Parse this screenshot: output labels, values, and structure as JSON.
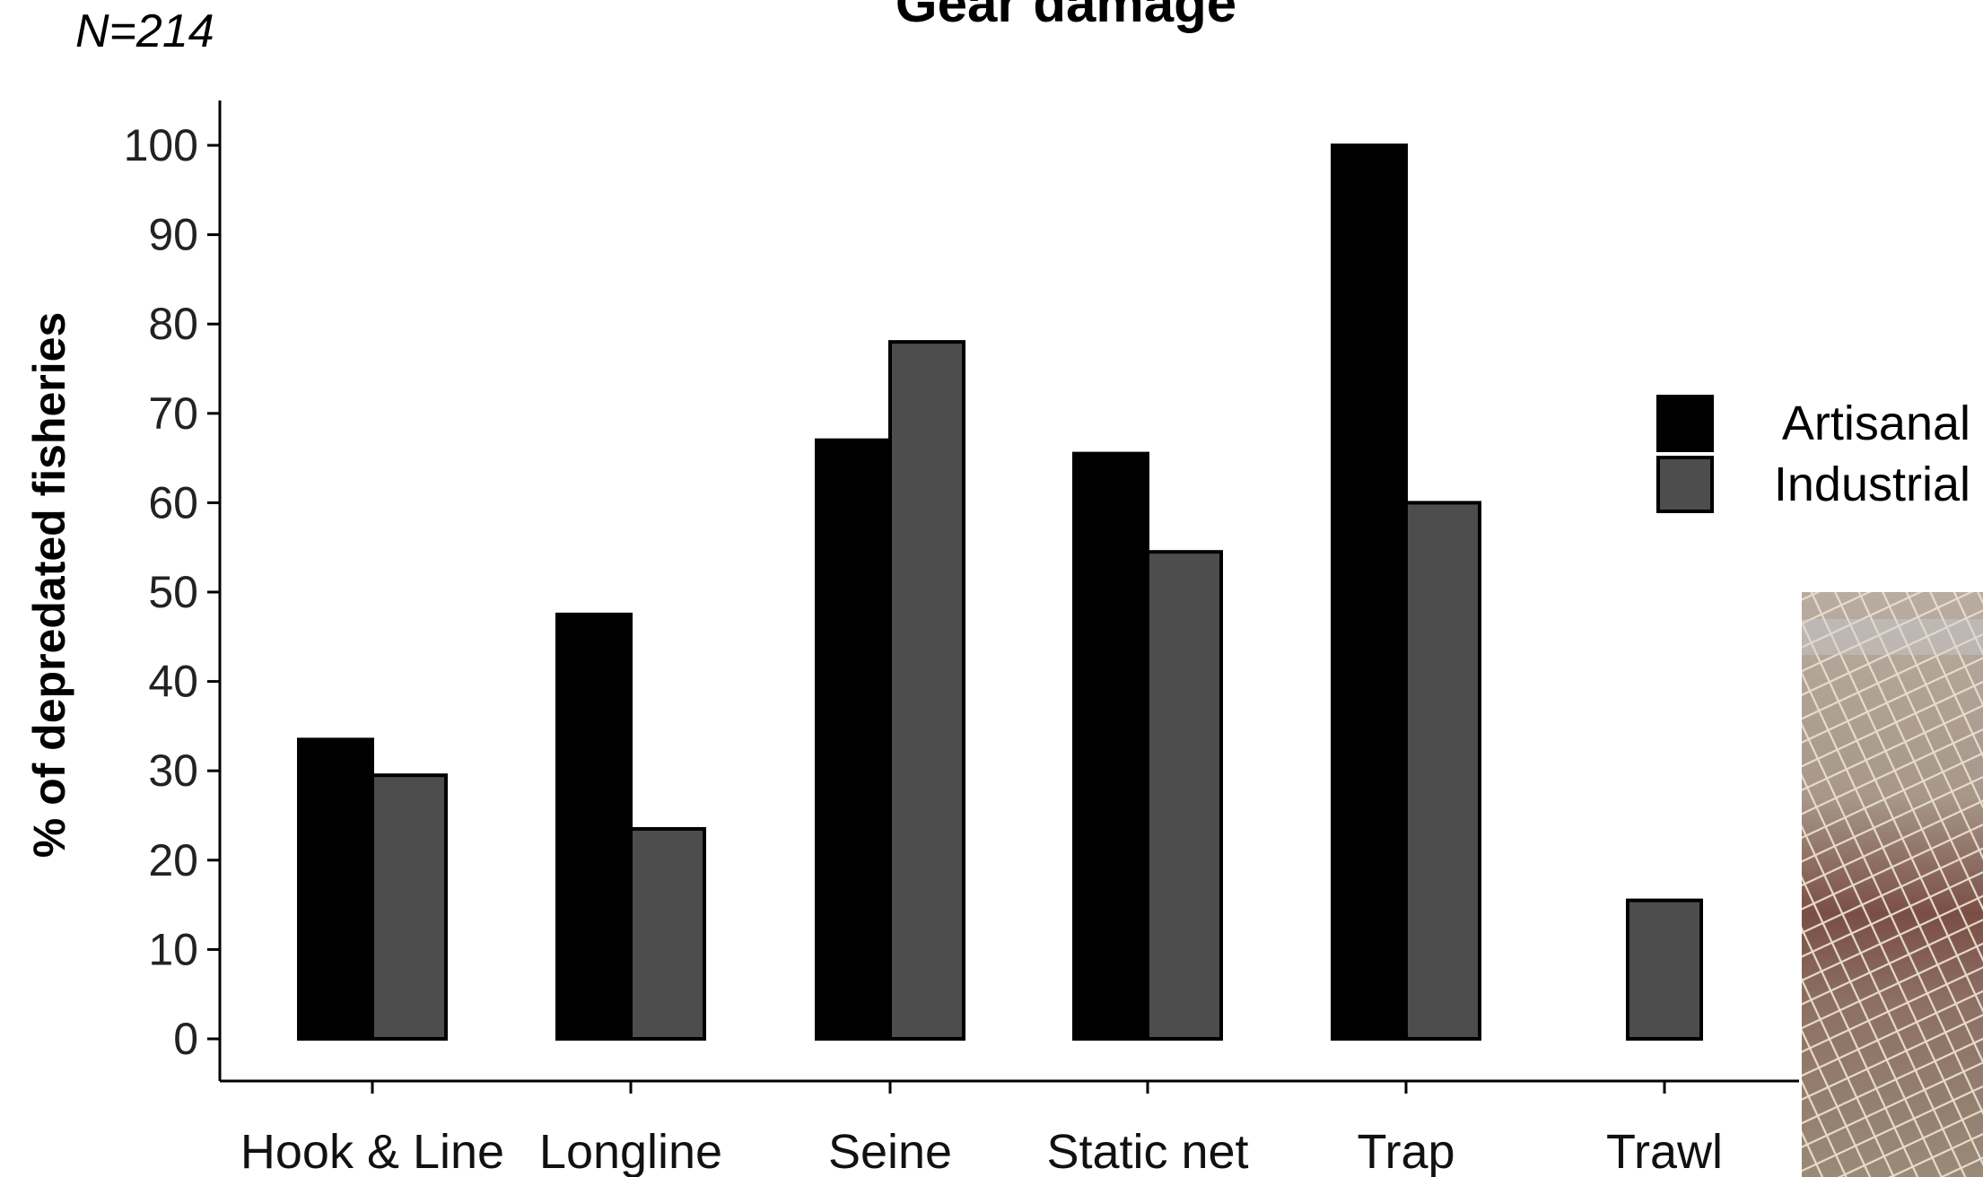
{
  "chart_data": {
    "type": "bar",
    "title": "Gear damage",
    "annotation": "N=214",
    "xlabel": "",
    "ylabel": "% of depredated fisheries",
    "ylim": [
      0,
      100
    ],
    "yticks": [
      0,
      10,
      20,
      30,
      40,
      50,
      60,
      70,
      80,
      90,
      100
    ],
    "grid": false,
    "legend_position": "right",
    "categories": [
      "Hook & Line",
      "Longline",
      "Seine",
      "Static net",
      "Trap",
      "Trawl"
    ],
    "series": [
      {
        "name": "Artisanal",
        "color": "#000000",
        "values": [
          33.5,
          47.5,
          67,
          65.5,
          100,
          null
        ]
      },
      {
        "name": "Industrial",
        "color": "#4d4d4d",
        "values": [
          29.5,
          23.5,
          78,
          54.5,
          60,
          15.5
        ]
      }
    ]
  },
  "inset_photo": {
    "subject": "fishing-net-photo"
  }
}
